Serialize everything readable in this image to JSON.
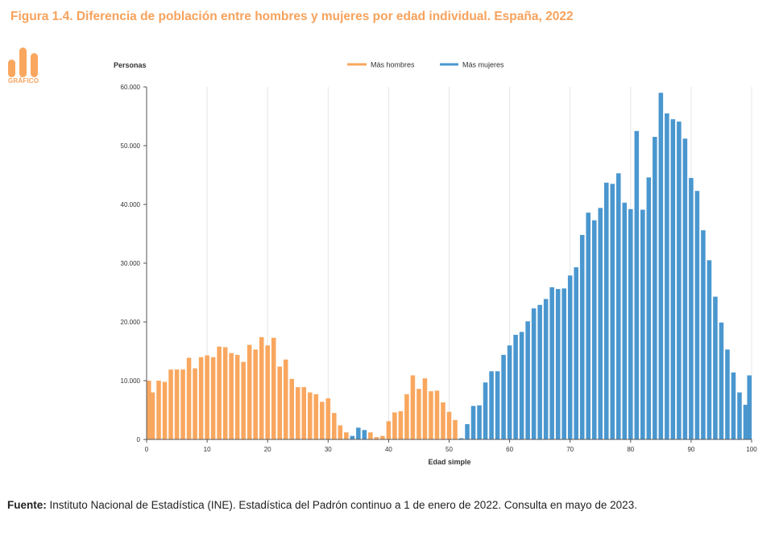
{
  "figure": {
    "title": "Figura 1.4.  Diferencia de población entre hombres y mujeres por edad individual. España, 2022",
    "logo_label": "GRÁFICO"
  },
  "source": {
    "label": "Fuente:",
    "text": " Instituto Nacional de Estadística (INE). Estadística del Padrón continuo a 1 de enero de 2022. Consulta en mayo de 2023."
  },
  "colors": {
    "men": "#f9a75f",
    "women": "#4a97cf",
    "title": "#f7a25c",
    "grid": "#e4e4e4"
  },
  "chart_data": {
    "type": "bar",
    "xlabel": "Edad simple",
    "ylabel": "Personas",
    "ylim": [
      0,
      60000
    ],
    "xlim": [
      0,
      100
    ],
    "yticks": [
      0,
      10000,
      20000,
      30000,
      40000,
      50000,
      60000
    ],
    "ytick_labels": [
      "0",
      "10.000",
      "20.000",
      "30.000",
      "40.000",
      "50.000",
      "60.000"
    ],
    "xticks": [
      0,
      10,
      20,
      30,
      40,
      50,
      60,
      70,
      80,
      90,
      100
    ],
    "xtick_labels": [
      "0",
      "10",
      "20",
      "30",
      "40",
      "50",
      "60",
      "70",
      "80",
      "90",
      "100"
    ],
    "legend_position": "top",
    "grid": "vertical",
    "series": [
      {
        "name": "Más hombres",
        "color": "#f9a75f"
      },
      {
        "name": "Más mujeres",
        "color": "#4a97cf"
      }
    ],
    "x": [
      0,
      1,
      2,
      3,
      4,
      5,
      6,
      7,
      8,
      9,
      10,
      11,
      12,
      13,
      14,
      15,
      16,
      17,
      18,
      19,
      20,
      21,
      22,
      23,
      24,
      25,
      26,
      27,
      28,
      29,
      30,
      31,
      32,
      33,
      34,
      35,
      36,
      37,
      38,
      39,
      40,
      41,
      42,
      43,
      44,
      45,
      46,
      47,
      48,
      49,
      50,
      51,
      52,
      53,
      54,
      55,
      56,
      57,
      58,
      59,
      60,
      61,
      62,
      63,
      64,
      65,
      66,
      67,
      68,
      69,
      70,
      71,
      72,
      73,
      74,
      75,
      76,
      77,
      78,
      79,
      80,
      81,
      82,
      83,
      84,
      85,
      86,
      87,
      88,
      89,
      90,
      91,
      92,
      93,
      94,
      95,
      96,
      97,
      98,
      99,
      100
    ],
    "values": [
      10000,
      8000,
      10000,
      9800,
      11900,
      11900,
      11900,
      13900,
      12100,
      14000,
      14300,
      14000,
      15800,
      15700,
      14700,
      14400,
      13200,
      16100,
      15300,
      17400,
      16000,
      17300,
      12400,
      13600,
      10300,
      8900,
      8900,
      8000,
      7700,
      6400,
      7000,
      4500,
      2400,
      1200,
      600,
      2000,
      1600,
      1200,
      400,
      600,
      3100,
      4600,
      4800,
      7700,
      10900,
      8600,
      10400,
      8200,
      8300,
      6300,
      4700,
      3300,
      200,
      2600,
      5700,
      5800,
      9700,
      11600,
      11600,
      14400,
      16000,
      17800,
      18300,
      20100,
      22300,
      22900,
      23900,
      25900,
      25600,
      25700,
      27900,
      29300,
      34800,
      38600,
      37300,
      39400,
      43700,
      43500,
      45300,
      40300,
      39200,
      52500,
      39100,
      44600,
      51500,
      59000,
      55500,
      54500,
      54100,
      51200,
      44500,
      42300,
      35600,
      30500,
      24300,
      19900,
      15300,
      11400,
      8000,
      5900,
      10900
    ],
    "group": [
      "m",
      "m",
      "m",
      "m",
      "m",
      "m",
      "m",
      "m",
      "m",
      "m",
      "m",
      "m",
      "m",
      "m",
      "m",
      "m",
      "m",
      "m",
      "m",
      "m",
      "m",
      "m",
      "m",
      "m",
      "m",
      "m",
      "m",
      "m",
      "m",
      "m",
      "m",
      "m",
      "m",
      "m",
      "f",
      "f",
      "f",
      "m",
      "m",
      "m",
      "m",
      "m",
      "m",
      "m",
      "m",
      "m",
      "m",
      "m",
      "m",
      "m",
      "m",
      "m",
      "f",
      "f",
      "f",
      "f",
      "f",
      "f",
      "f",
      "f",
      "f",
      "f",
      "f",
      "f",
      "f",
      "f",
      "f",
      "f",
      "f",
      "f",
      "f",
      "f",
      "f",
      "f",
      "f",
      "f",
      "f",
      "f",
      "f",
      "f",
      "f",
      "f",
      "f",
      "f",
      "f",
      "f",
      "f",
      "f",
      "f",
      "f",
      "f",
      "f",
      "f",
      "f",
      "f",
      "f",
      "f",
      "f",
      "f",
      "f",
      "f"
    ]
  }
}
